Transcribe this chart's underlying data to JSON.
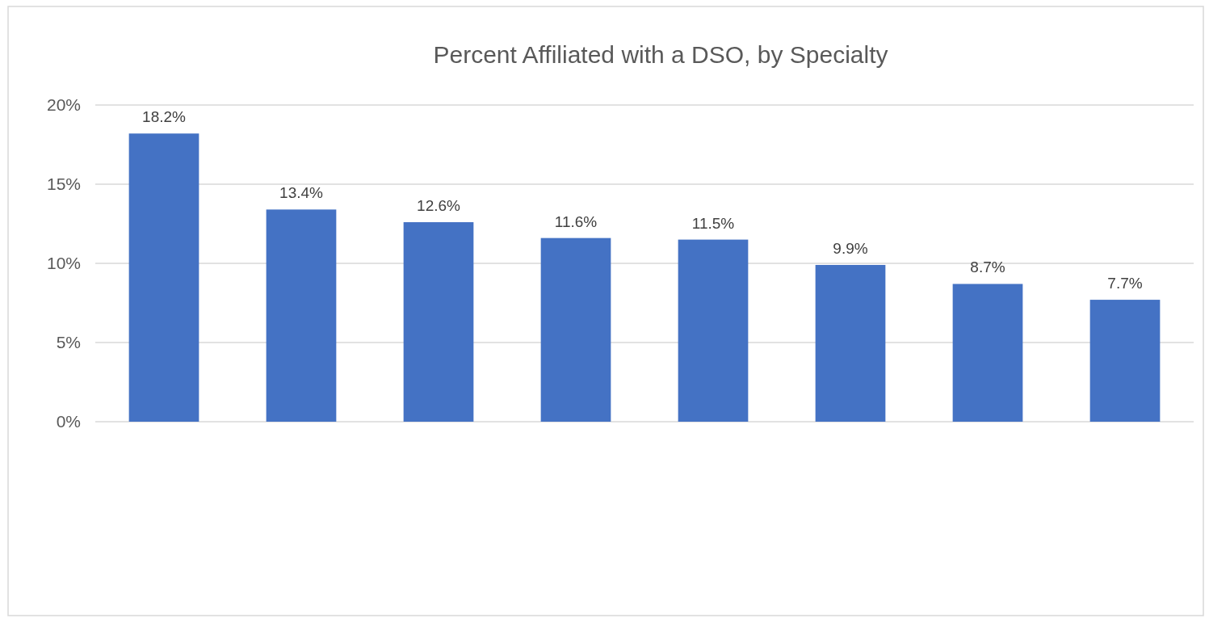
{
  "chart_data": {
    "type": "bar",
    "title": "Percent Affiliated with a DSO, by Specialty",
    "categories": [
      null,
      null,
      null,
      null,
      null,
      null,
      null,
      null
    ],
    "values": [
      18.2,
      13.4,
      12.6,
      11.6,
      11.5,
      9.9,
      8.7,
      7.7
    ],
    "value_labels": [
      "18.2%",
      "13.4%",
      "12.6%",
      "11.6%",
      "11.5%",
      "9.9%",
      "8.7%",
      "7.7%"
    ],
    "color": "#4472c4",
    "ylim": [
      0,
      20
    ],
    "yticks": [
      {
        "value": 0,
        "label": "0%"
      },
      {
        "value": 5,
        "label": "5%"
      },
      {
        "value": 10,
        "label": "10%"
      },
      {
        "value": 15,
        "label": "15%"
      },
      {
        "value": 20,
        "label": "20%"
      }
    ],
    "grid": "y"
  }
}
